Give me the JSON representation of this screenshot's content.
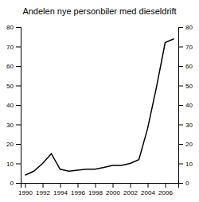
{
  "chart_data": {
    "type": "line",
    "title": "Andelen nye personbiler med dieseldrift",
    "x": [
      1990,
      1991,
      1992,
      1993,
      1994,
      1995,
      1996,
      1997,
      1998,
      1999,
      2000,
      2001,
      2002,
      2003,
      2004,
      2005,
      2006,
      2007
    ],
    "values": [
      4,
      6,
      10,
      15,
      7,
      6,
      6.5,
      7,
      7,
      8,
      9,
      9,
      10,
      12,
      28,
      49,
      72,
      74
    ],
    "color": "#000000",
    "xlim": [
      1989.5,
      2007.5
    ],
    "ylim": [
      0,
      80
    ],
    "xticks": [
      1990,
      1992,
      1994,
      1996,
      1998,
      2000,
      2002,
      2004,
      2006
    ],
    "yticks": [
      0,
      10,
      20,
      30,
      40,
      50,
      60,
      70,
      80
    ],
    "y2lim": [
      0,
      80
    ],
    "y2ticks": [
      0,
      10,
      20,
      30,
      40,
      50,
      60,
      70,
      80
    ],
    "grid": false
  }
}
